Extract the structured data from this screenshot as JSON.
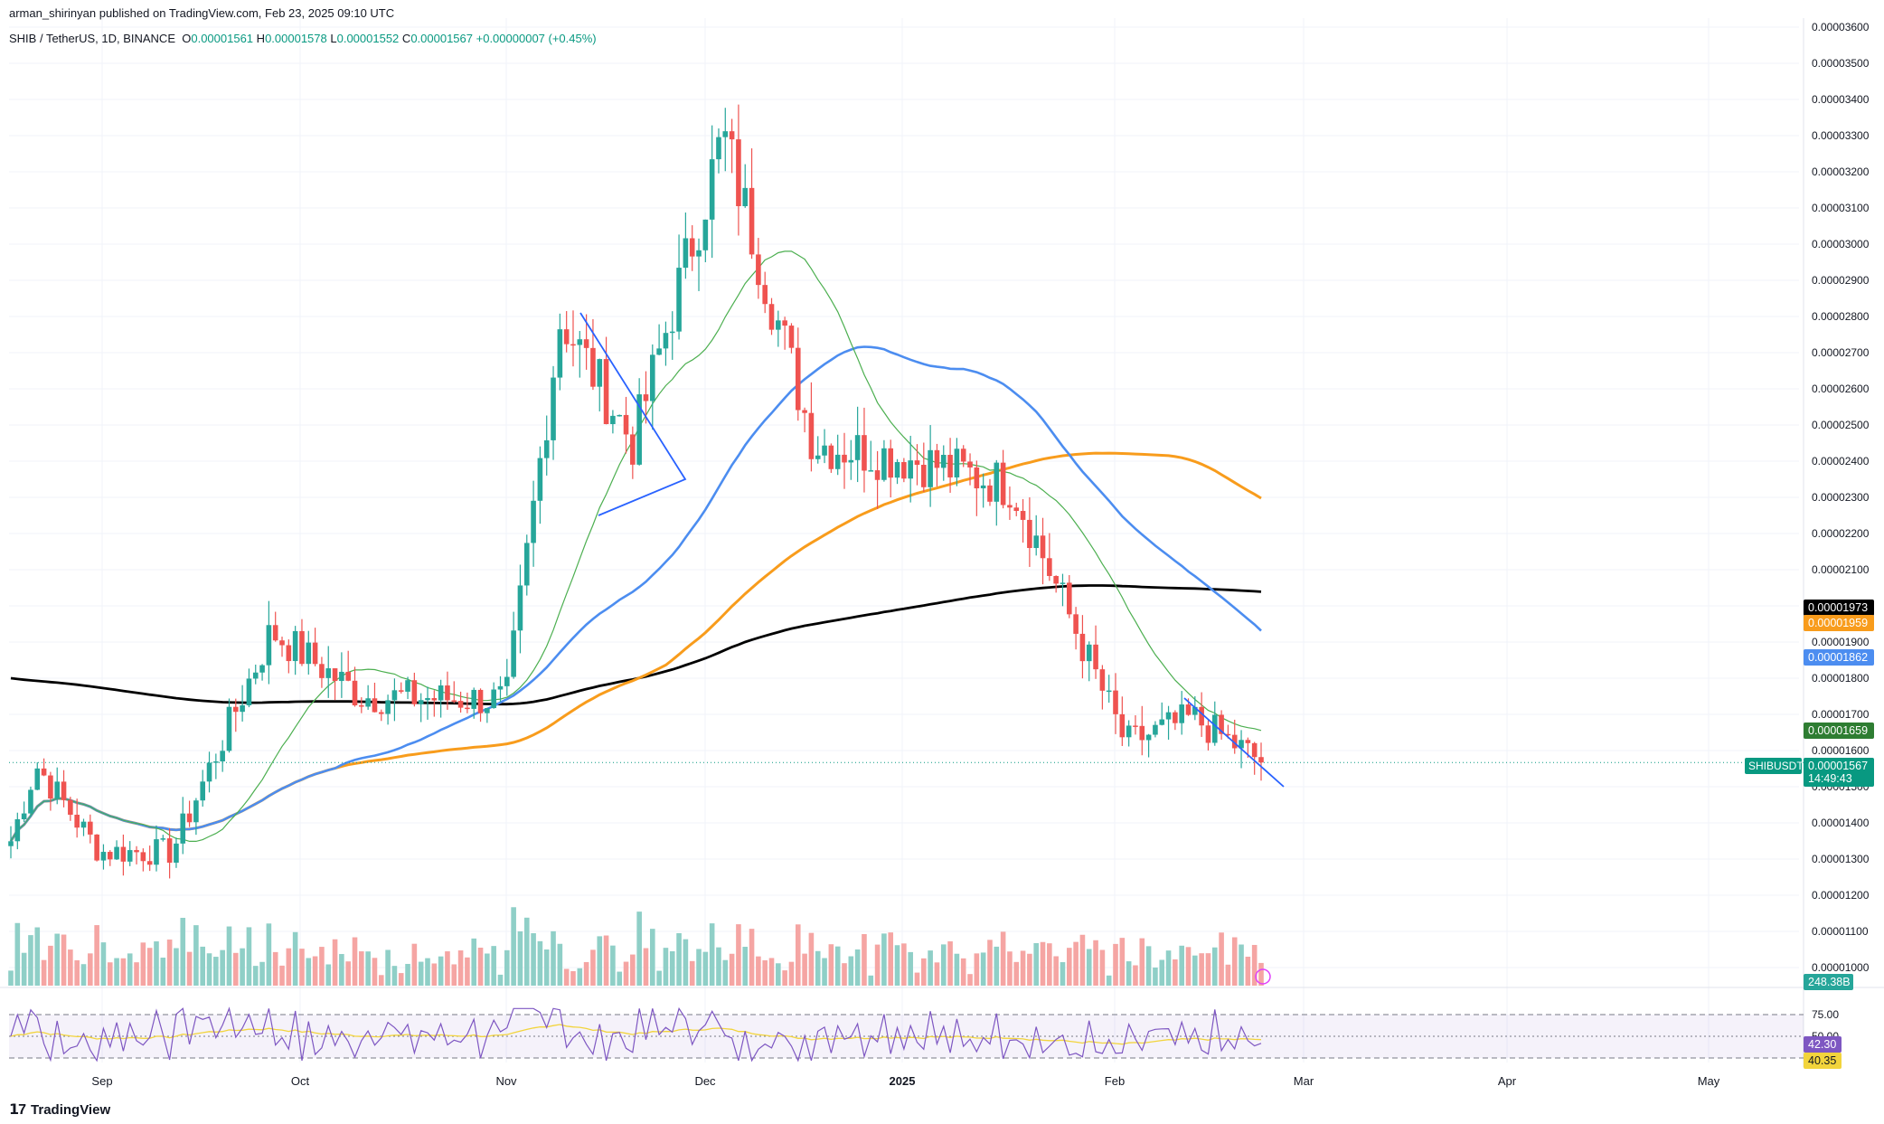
{
  "header": {
    "published": "arman_shirinyan published on TradingView.com, Feb 23, 2025 09:10 UTC",
    "symbol": "SHIB / TetherUS, 1D, BINANCE",
    "ohlc": {
      "o_label": "O",
      "o": "0.00001561",
      "h_label": "H",
      "h": "0.00001578",
      "l_label": "L",
      "l": "0.00001552",
      "c_label": "C",
      "c": "0.00001567",
      "change": "+0.00000007 (+0.45%)"
    }
  },
  "brand": {
    "logo_text": "TradingView"
  },
  "colors": {
    "up": "#26a69a",
    "down": "#ef5350",
    "vol_up": "#8fcfc7",
    "vol_down": "#f5a5a3",
    "ma20": "#4caf50",
    "ma50": "#4c8df0",
    "ma100": "#f89c1c",
    "ma200": "#000000",
    "trend": "#2962ff",
    "rsi": "#7e57c2",
    "rsi_ma": "#f2d43c"
  },
  "chart_data": {
    "type": "candlestick",
    "symbol": "SHIB/USDT",
    "interval": "1D",
    "ylim": [
      9.5e-06,
      3.6e-05
    ],
    "y_ticks": [
      "0.00003600",
      "0.00003500",
      "0.00003400",
      "0.00003300",
      "0.00003200",
      "0.00003100",
      "0.00003000",
      "0.00002900",
      "0.00002800",
      "0.00002700",
      "0.00002600",
      "0.00002500",
      "0.00002400",
      "0.00002300",
      "0.00002200",
      "0.00002100",
      "0.00002000",
      "0.00001900",
      "0.00001800",
      "0.00001700",
      "0.00001600",
      "0.00001500",
      "0.00001400",
      "0.00001300",
      "0.00001200",
      "0.00001100",
      "0.00001000"
    ],
    "x_ticks": [
      "Sep",
      "Oct",
      "Nov",
      "Dec",
      "2025",
      "Feb",
      "Mar",
      "Apr",
      "May"
    ],
    "key_closes": [
      {
        "date": "Aug 20",
        "close": 1.35e-05
      },
      {
        "date": "Aug 25",
        "close": 1.56e-05
      },
      {
        "date": "Sep 5",
        "close": 1.32e-05
      },
      {
        "date": "Sep 15",
        "close": 1.32e-05
      },
      {
        "date": "Sep 28",
        "close": 1.93e-05
      },
      {
        "date": "Oct 10",
        "close": 1.75e-05
      },
      {
        "date": "Oct 30",
        "close": 1.74e-05
      },
      {
        "date": "Nov 12",
        "close": 2.8e-05
      },
      {
        "date": "Nov 20",
        "close": 2.45e-05
      },
      {
        "date": "Dec 8",
        "close": 3.3e-05
      },
      {
        "date": "Dec 18",
        "close": 2.45e-05
      },
      {
        "date": "Jan 7",
        "close": 2.4e-05
      },
      {
        "date": "Jan 18",
        "close": 2.33e-05
      },
      {
        "date": "Feb 3",
        "close": 1.62e-05
      },
      {
        "date": "Feb 13",
        "close": 1.69e-05
      },
      {
        "date": "Feb 22",
        "close": 1.57e-05
      }
    ],
    "price_labels": [
      {
        "name": "MA200",
        "value": "0.00001973",
        "color": "#000000"
      },
      {
        "name": "MA100",
        "value": "0.00001959",
        "color": "#f89c1c"
      },
      {
        "name": "MA50",
        "value": "0.00001862",
        "color": "#4c8df0"
      },
      {
        "name": "MA20",
        "value": "0.00001659",
        "color": "#2e7d32"
      },
      {
        "name": "SHIBUSDT",
        "value": "0.00001567",
        "color": "#089981",
        "countdown": "14:49:43"
      },
      {
        "name": "Volume",
        "value": "248.38B",
        "color": "#26a69a"
      }
    ],
    "rsi": {
      "ticks": [
        "75.00",
        "50.00",
        "25.00"
      ],
      "rsi_value": "42.30",
      "rsi_ma_value": "40.35"
    },
    "grid": true
  }
}
